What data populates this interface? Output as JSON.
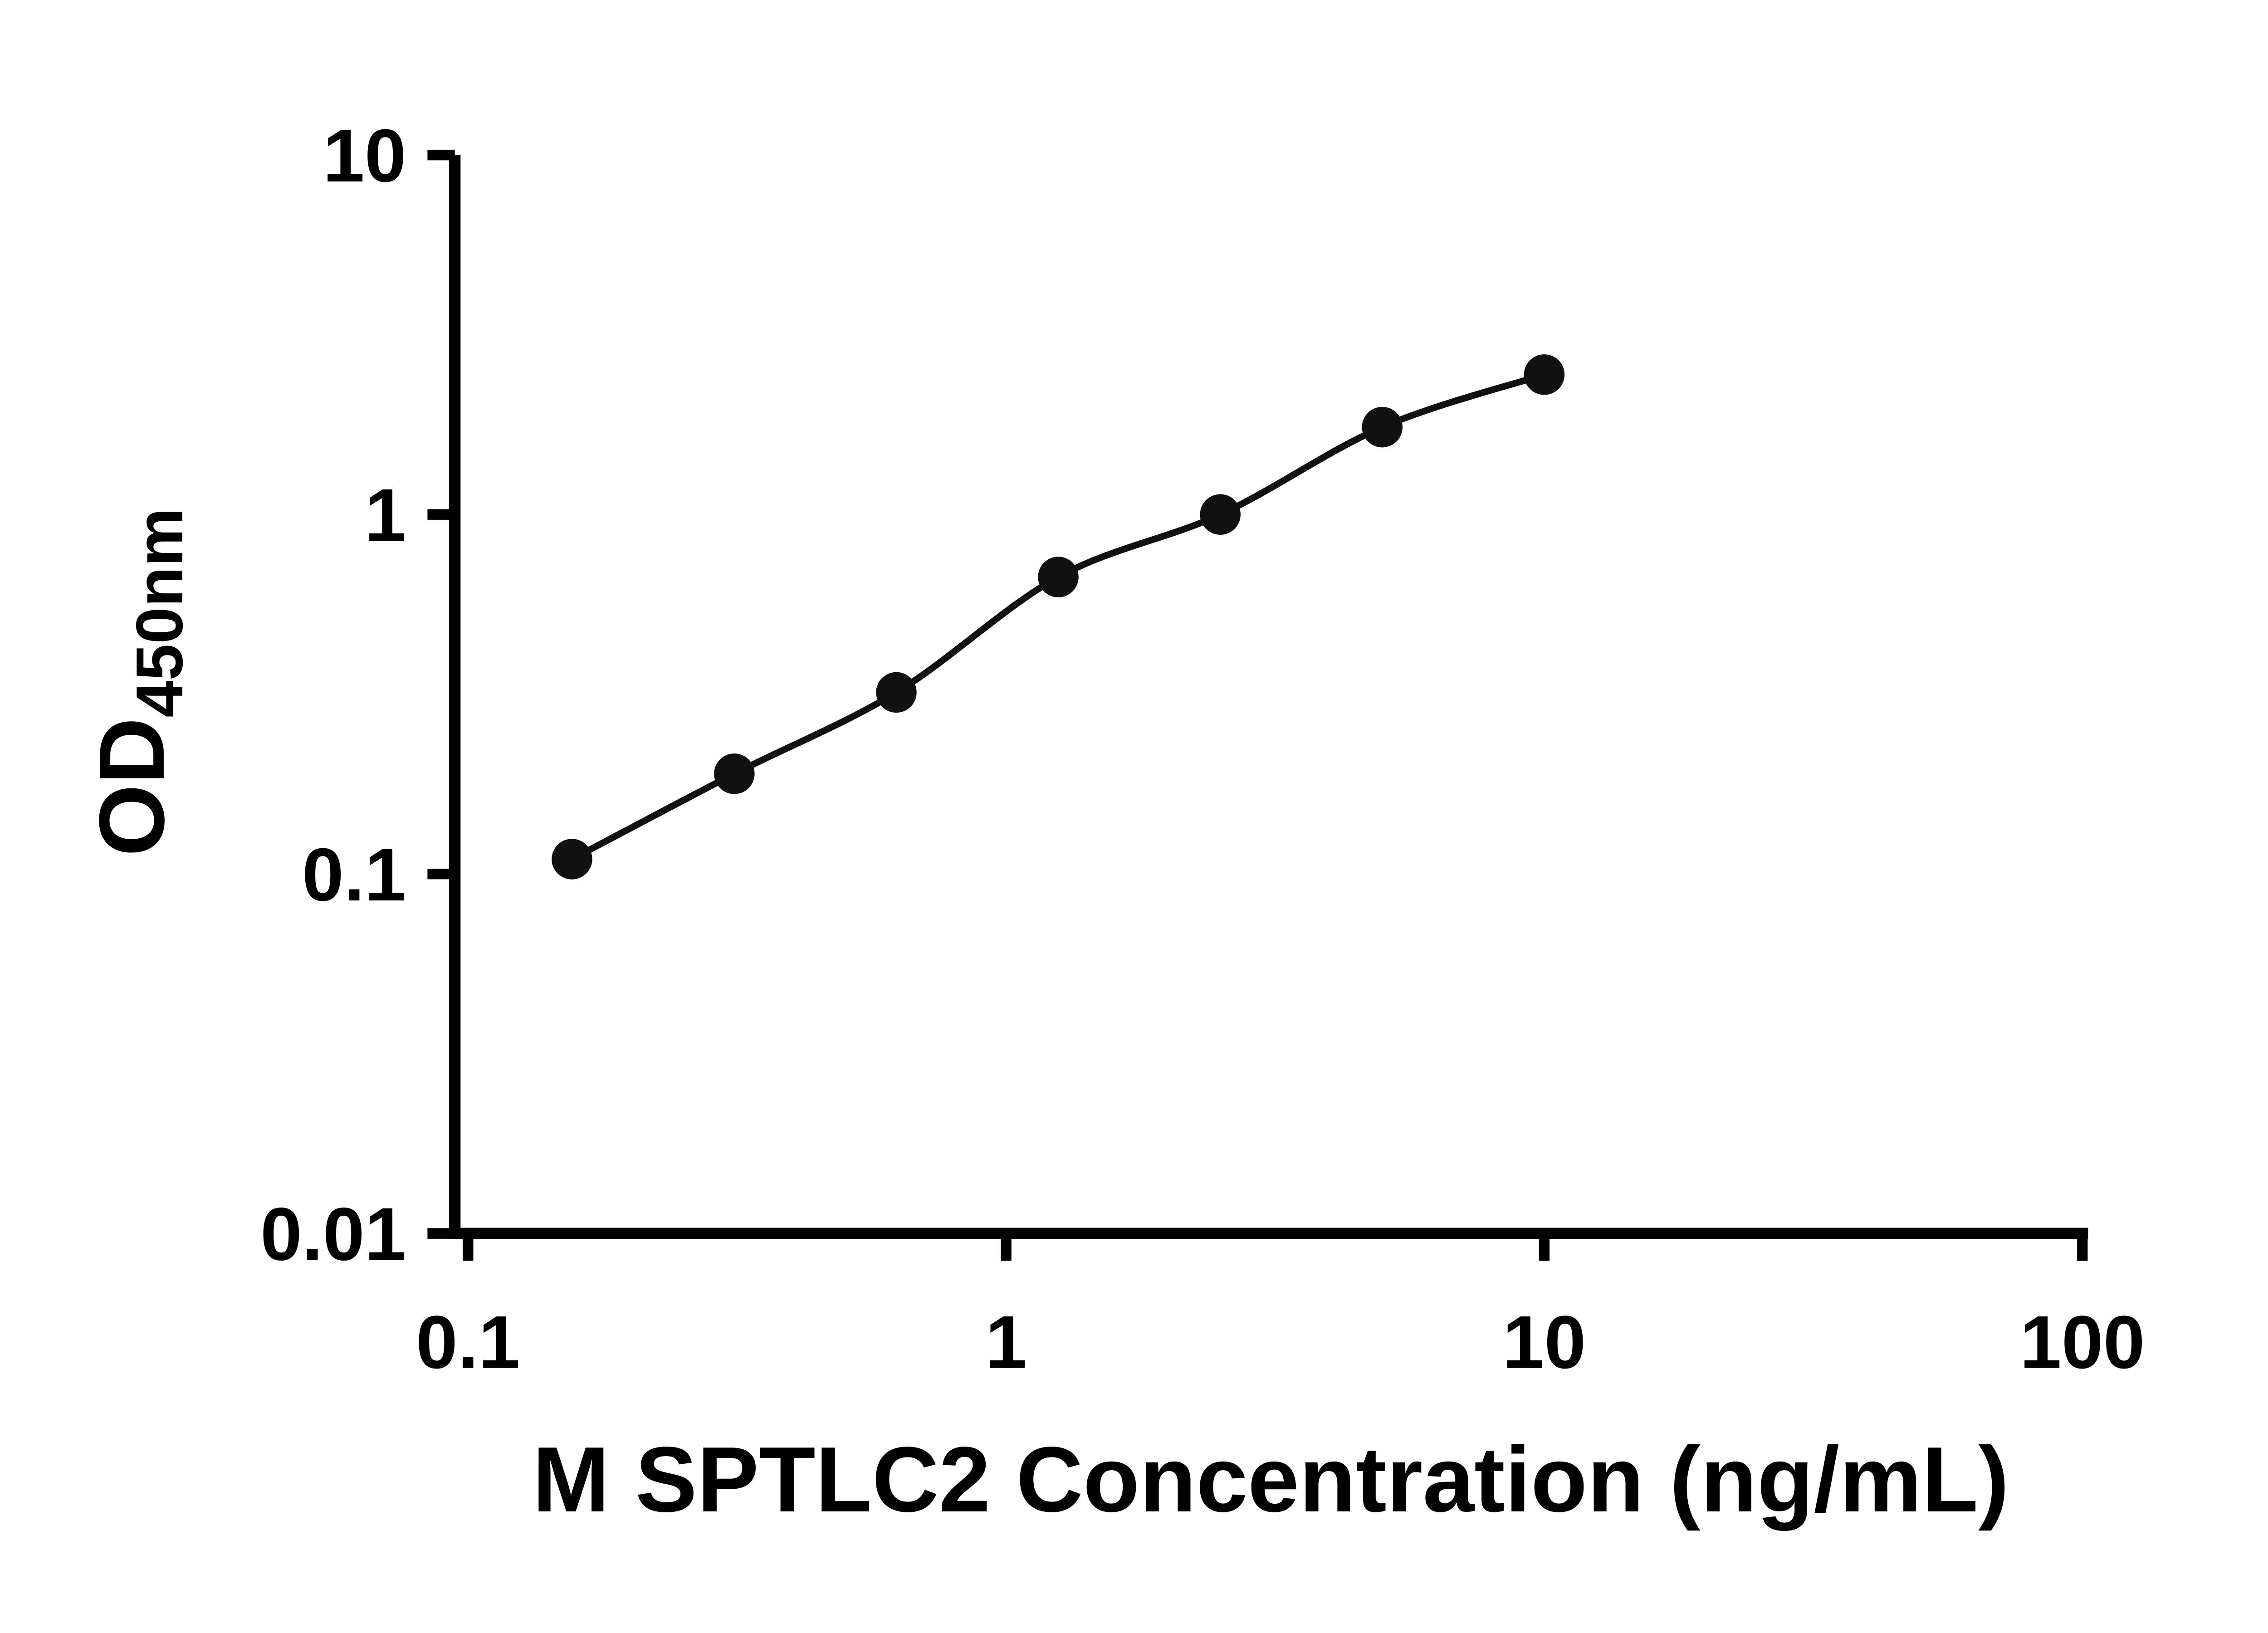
{
  "chart_data": {
    "type": "scatter",
    "x": [
      0.156,
      0.3125,
      0.625,
      1.25,
      2.5,
      5,
      10
    ],
    "y": [
      0.11,
      0.19,
      0.32,
      0.67,
      1.0,
      1.75,
      2.45
    ],
    "x_scale": "log",
    "y_scale": "log",
    "xlim": [
      0.1,
      100
    ],
    "ylim": [
      0.01,
      10
    ],
    "x_ticks": [
      "0.1",
      "1",
      "10",
      "100"
    ],
    "y_ticks": [
      "0.01",
      "0.1",
      "1",
      "10"
    ],
    "xlabel": "M SPTLC2 Concentration (ng/mL)",
    "ylabel": "OD450nm",
    "ylabel_main": "OD",
    "ylabel_sub": "450nm",
    "grid": false,
    "legend": null,
    "marker_color": "#111111",
    "line_color": "#111111",
    "axis_color": "#000000"
  }
}
